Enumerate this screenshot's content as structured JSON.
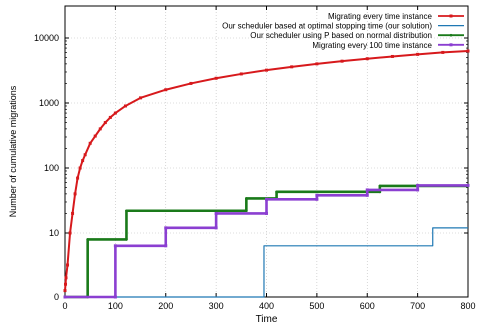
{
  "chart_data": {
    "type": "line",
    "title": "",
    "xlabel": "Time",
    "ylabel": "Number of cumulative migrations",
    "xlim": [
      0,
      800
    ],
    "ylim_display": [
      0,
      10000
    ],
    "y_scale": "log-like",
    "grid": true,
    "legend_position": "top-right",
    "x_ticks": [
      0,
      100,
      200,
      300,
      400,
      500,
      600,
      700,
      800
    ],
    "x_tick_labels": [
      "0",
      "100",
      "200",
      "300",
      "400",
      "500",
      "600",
      "700",
      "800"
    ],
    "y_ticks": [
      0,
      10,
      100,
      1000,
      10000
    ],
    "y_tick_labels": [
      "0",
      "10",
      "100",
      "1000",
      "10000"
    ],
    "series": [
      {
        "name": "Migrating every time instance",
        "color": "#d7191c",
        "marker": "square",
        "x": [
          0,
          1,
          2,
          5,
          10,
          15,
          20,
          25,
          30,
          35,
          40,
          50,
          60,
          70,
          80,
          90,
          100,
          120,
          150,
          200,
          250,
          300,
          350,
          400,
          450,
          500,
          550,
          600,
          650,
          700,
          750,
          800
        ],
        "y": [
          1,
          2,
          3,
          5,
          10,
          20,
          40,
          70,
          100,
          130,
          160,
          240,
          310,
          400,
          500,
          600,
          700,
          900,
          1200,
          1600,
          2000,
          2400,
          2800,
          3200,
          3600,
          4000,
          4400,
          4800,
          5200,
          5600,
          6000,
          6300
        ]
      },
      {
        "name": "Our scheduler based at optimal stopping time (our solution)",
        "color": "#1f78b4",
        "marker": "none",
        "x": [
          0,
          395,
          395,
          730,
          730,
          800
        ],
        "y": [
          0,
          0,
          8,
          8,
          12,
          12
        ]
      },
      {
        "name": "Our scheduler using P based on normal distribution",
        "color": "#1a7a1a",
        "marker": "dot",
        "x": [
          0,
          45,
          45,
          122,
          122,
          360,
          360,
          420,
          420,
          625,
          625,
          800
        ],
        "y": [
          0,
          0,
          9,
          9,
          22,
          22,
          34,
          34,
          43,
          43,
          53,
          53
        ]
      },
      {
        "name": "Migrating every 100 time instance",
        "color": "#8b3fd1",
        "marker": "square",
        "x": [
          0,
          100,
          100,
          200,
          200,
          300,
          300,
          400,
          400,
          500,
          500,
          600,
          600,
          700,
          700,
          800
        ],
        "y": [
          0,
          0,
          8,
          8,
          12,
          12,
          20,
          20,
          33,
          33,
          38,
          38,
          46,
          46,
          54,
          54
        ]
      }
    ]
  }
}
